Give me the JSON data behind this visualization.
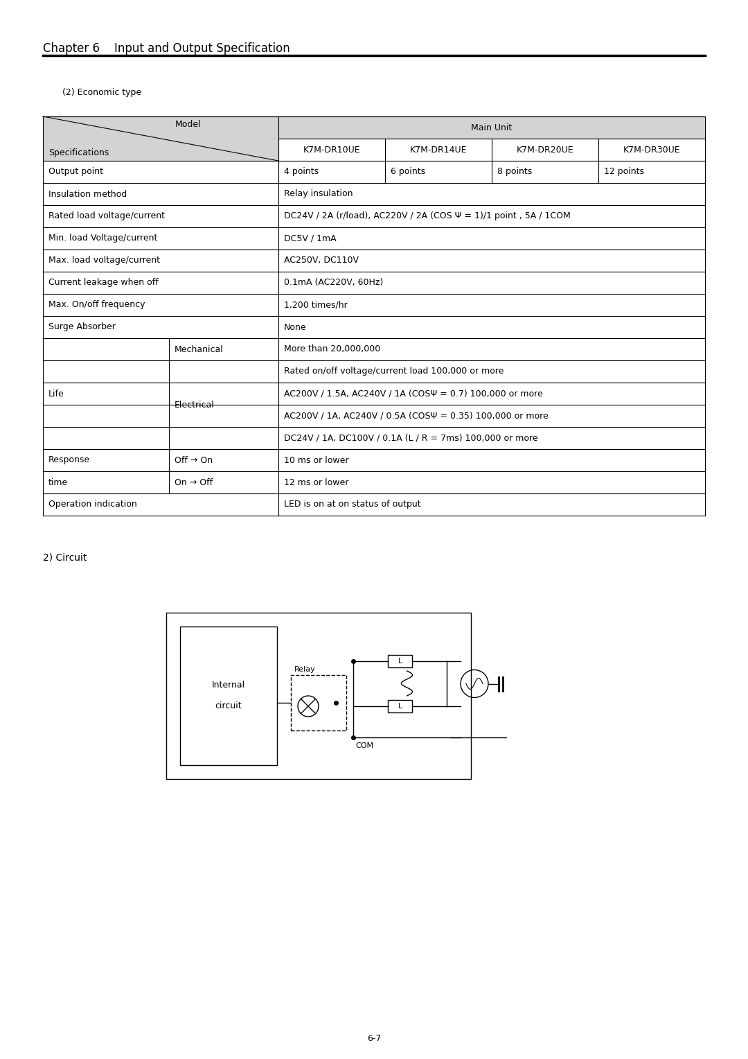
{
  "title": "Chapter 6    Input and Output Specification",
  "subtitle": "(2) Economic type",
  "circuit_label": "2) Circuit",
  "page_number": "6-7",
  "table": {
    "header_model": "Model",
    "header_main_unit": "Main Unit",
    "header_specs": "Specifications",
    "columns": [
      "K7M-DR10UE",
      "K7M-DR14UE",
      "K7M-DR20UE",
      "K7M-DR30UE"
    ],
    "rows": [
      {
        "label": "Output point",
        "span": true,
        "values": [
          "4 points",
          "6 points",
          "8 points",
          "12 points"
        ]
      },
      {
        "label": "Insulation method",
        "span": true,
        "value": "Relay insulation"
      },
      {
        "label": "Rated load voltage/current",
        "span": true,
        "value": "DC24V / 2A (r/load), AC220V / 2A (COS Ψ = 1)/1 point , 5A / 1COM"
      },
      {
        "label": "Min. load Voltage/current",
        "span": true,
        "value": "DC5V / 1mA"
      },
      {
        "label": "Max. load voltage/current",
        "span": true,
        "value": "AC250V, DC110V"
      },
      {
        "label": "Current leakage when off",
        "span": true,
        "value": "0.1mA (AC220V, 60Hz)"
      },
      {
        "label": "Max. On/off frequency",
        "span": true,
        "value": "1,200 times/hr"
      },
      {
        "label": "Surge Absorber",
        "span": true,
        "value": "None"
      },
      {
        "label": "Life",
        "sub1": "Mechanical",
        "sub1_value": "More than 20,000,000",
        "sub2": "Electrical",
        "sub2_values": [
          "Rated on/off voltage/current load 100,000 or more",
          "AC200V / 1.5A, AC240V / 1A (COSΨ = 0.7) 100,000 or more",
          "AC200V / 1A, AC240V / 0.5A (COSΨ = 0.35) 100,000 or more",
          "DC24V / 1A, DC100V / 0.1A (L / R = 7ms) 100,000 or more"
        ]
      }
    ],
    "response_rows": [
      {
        "label": "Response",
        "sub": "Off → On",
        "value": "10 ms or lower"
      },
      {
        "label": "time",
        "sub": "On → Off",
        "value": "12 ms or lower"
      }
    ],
    "operation_row": {
      "label": "Operation indication",
      "value": "LED is on at on status of output"
    }
  },
  "bg_color": "#ffffff",
  "header_bg": "#d3d3d3",
  "line_color": "#000000",
  "text_color": "#000000",
  "font_size": 9,
  "title_font_size": 12
}
